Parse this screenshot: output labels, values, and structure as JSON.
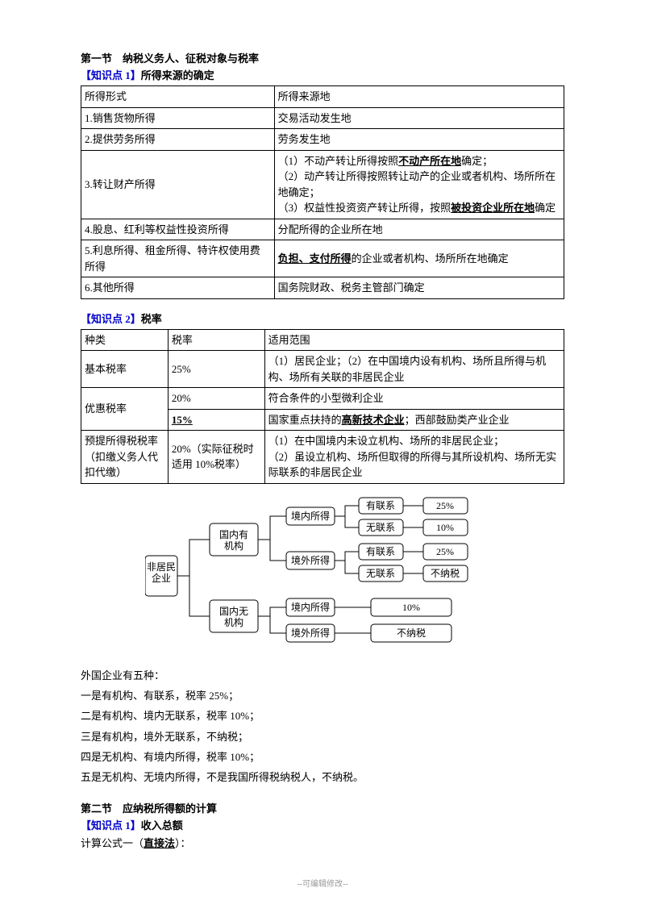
{
  "section1_title": "第一节　纳税义务人、征税对象与税率",
  "kp1_label": "【知识点 1】",
  "kp1_title": "所得来源的确定",
  "table1": {
    "header": [
      "所得形式",
      "所得来源地"
    ],
    "rows": [
      [
        "1.销售货物所得",
        "交易活动发生地"
      ],
      [
        "2.提供劳务所得",
        "劳务发生地"
      ],
      [
        "3.转让财产所得",
        "（1）不动产转让所得按照",
        "不动产所在地",
        "确定；\n（2）动产转让所得按照转让动产的企业或者机构、场所所在地确定；\n（3）权益性投资资产转让所得，按照",
        "被投资企业所在地",
        "确定"
      ],
      [
        "4.股息、红利等权益性投资所得",
        "分配所得的企业所在地"
      ],
      [
        "5.利息所得、租金所得、特许权使用费所得",
        "负担、支付所得",
        "的企业或者机构、场所所在地确定"
      ],
      [
        "6.其他所得",
        "国务院财政、税务主管部门确定"
      ]
    ]
  },
  "kp2_label": "【知识点 2】",
  "kp2_title": "税率",
  "table2": {
    "header": [
      "种类",
      "税率",
      "适用范围"
    ],
    "r1": [
      "基本税率",
      "25%",
      "（1）居民企业；（2）在中国境内设有机构、场所且所得与机构、场所有关联的非居民企业"
    ],
    "r2a": [
      "优惠税率",
      "20%",
      "符合条件的小型微利企业"
    ],
    "r2b": [
      "15%",
      "国家重点扶持的",
      "高新技术企业",
      "；西部鼓励类产业企业"
    ],
    "r3": [
      "预提所得税税率（扣缴义务人代扣代缴）",
      "20%（实际征税时适用 10%税率）",
      "（1）在中国境内未设立机构、场所的非居民企业；\n（2）虽设立机构、场所但取得的所得与其所设机构、场所无实际联系的非居民企业"
    ]
  },
  "diagram": {
    "root": "非居民企业",
    "l1a": "国内有机构",
    "l1b": "国内无机构",
    "l2a": "境内所得",
    "l2b": "境外所得",
    "l3a": "有联系",
    "l3b": "无联系",
    "v25": "25%",
    "v10": "10%",
    "vno": "不纳税"
  },
  "lines": [
    "外国企业有五种：",
    "一是有机构、有联系，税率 25%；",
    "二是有机构、境内无联系，税率 10%；",
    "三是有机构，境外无联系，不纳税；",
    "四是无机构、有境内所得，税率 10%；",
    "五是无机构、无境内所得，不是我国所得税纳税人，不纳税。"
  ],
  "section2_title": "第二节　应纳税所得额的计算",
  "kp3_label": "【知识点 1】",
  "kp3_title": "收入总额",
  "formula_prefix": "计算公式一（",
  "formula_u": "直接法",
  "formula_suffix": "）：",
  "footer": "--可编辑修改--"
}
